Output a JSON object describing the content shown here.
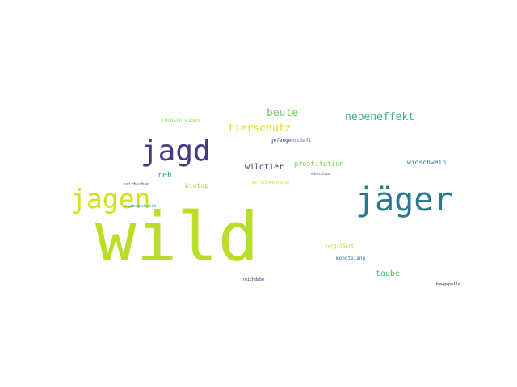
{
  "words": [
    {
      "text": "wild",
      "color": "#b9de28"
    },
    {
      "text": "jäger",
      "color": "#2a788e"
    },
    {
      "text": "jagen",
      "color": "#d2e21b"
    },
    {
      "text": "jagd",
      "color": "#443983"
    },
    {
      "text": "nebeneffekt",
      "color": "#35b779"
    },
    {
      "text": "beute",
      "color": "#6ccd5a"
    },
    {
      "text": "tierschutz",
      "color": "#dae319"
    },
    {
      "text": "wildtier",
      "color": "#46327e"
    },
    {
      "text": "reh",
      "color": "#25ab82"
    },
    {
      "text": "prostitution",
      "color": "#7ad151"
    },
    {
      "text": "taube",
      "color": "#4ac16d"
    },
    {
      "text": "widschwein",
      "color": "#287d8e"
    },
    {
      "text": "biotop",
      "color": "#a2da37"
    },
    {
      "text": "rundschreiben",
      "color": "#8ed645"
    },
    {
      "text": "gefangenschaft",
      "color": "#3e4a89"
    },
    {
      "text": "verschwendung",
      "color": "#d8e219"
    },
    {
      "text": "abschus",
      "color": "#31688e"
    },
    {
      "text": "suizberbad",
      "color": "#3b528b"
    },
    {
      "text": "siebenhöwert",
      "color": "#20a486"
    },
    {
      "text": "vergrößert",
      "color": "#b5de2b"
    },
    {
      "text": "monoteiang",
      "color": "#2c728e"
    },
    {
      "text": "reichdabe",
      "color": "#482878"
    },
    {
      "text": "bewgapelle",
      "color": "#440154"
    }
  ]
}
